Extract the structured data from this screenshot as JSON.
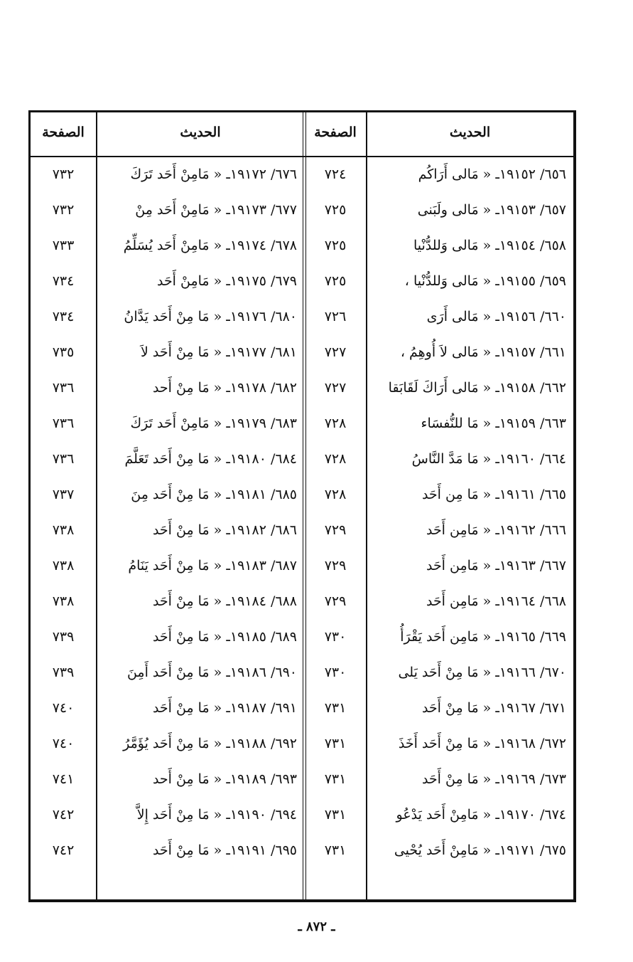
{
  "table": {
    "headers": [
      "الحديث",
      "الصفحة",
      "الحديث",
      "الصفحة"
    ],
    "rows": [
      [
        "٦٥٦/ ١٩١٥٢ـ « مَالى أَرَاكُم",
        "٧٢٤",
        "٦٧٦/ ١٩١٧٢ـ « مَامِنْ أَحَد تَرَكَ",
        "٧٣٢"
      ],
      [
        "٦٥٧/ ١٩١٥٣ـ « مَالى ولَبَنى",
        "٧٢٥",
        "٦٧٧/ ١٩١٧٣ـ « مَامِنْ أَحَد مِنْ",
        "٧٣٢"
      ],
      [
        "٦٥٨/ ١٩١٥٤ـ « مَالى وَللدُّنْيا",
        "٧٢٥",
        "٦٧٨/ ١٩١٧٤ـ « مَامِنْ أَحَد يُسَلِّمُ",
        "٧٣٣"
      ],
      [
        "٦٥٩/ ١٩١٥٥ـ « مَالى وَللدُّنْيا ،",
        "٧٢٥",
        "٦٧٩/ ١٩١٧٥ـ « مَامِنْ أَحَد",
        "٧٣٤"
      ],
      [
        "٦٦٠/ ١٩١٥٦ـ « مَالى أَرَى",
        "٧٢٦",
        "٦٨٠/ ١٩١٧٦ـ « مَا مِنْ أَحَد يَدَّانُ",
        "٧٣٤"
      ],
      [
        "٦٦١/ ١٩١٥٧ـ « مَالى لاَ أُوهِمُ ،",
        "٧٢٧",
        "٦٨١/ ١٩١٧٧ـ « مَا مِنْ أَحَد لاَ",
        "٧٣٥"
      ],
      [
        "٦٦٢/ ١٩١٥٨ـ « مَالى أَرَاكَ لَقَابَقا",
        "٧٢٧",
        "٦٨٢/ ١٩١٧٨ـ « مَا مِنْ أَحد",
        "٧٣٦"
      ],
      [
        "٦٦٣/ ١٩١٥٩ـ « مَا للنُّفسَاء",
        "٧٢٨",
        "٦٨٣/ ١٩١٧٩ـ « مَامِنْ أَحَد تَرَكَ",
        "٧٣٦"
      ],
      [
        "٦٦٤/ ١٩١٦٠ـ « مَا مَدَّ النَّاسُ",
        "٧٢٨",
        "٦٨٤/ ١٩١٨٠ـ « مَا مِنْ أَحَد تَعَلَّمَ",
        "٧٣٦"
      ],
      [
        "٦٦٥/ ١٩١٦١ـ « مَا مِن أَحَد",
        "٧٢٨",
        "٦٨٥/ ١٩١٨١ـ « مَا مِنْ أَحَد مِنَ",
        "٧٣٧"
      ],
      [
        "٦٦٦/ ١٩١٦٢ـ « مَامِن أَحَد",
        "٧٢٩",
        "٦٨٦/ ١٩١٨٢ـ « مَا مِنْ أَحَد",
        "٧٣٨"
      ],
      [
        "٦٦٧/ ١٩١٦٣ـ « مَامِن أَحَد",
        "٧٢٩",
        "٦٨٧/ ١٩١٨٣ـ « مَا مِنْ أَحَد يَنَامُ",
        "٧٣٨"
      ],
      [
        "٦٦٨/ ١٩١٦٤ـ « مَامِن أَحَد",
        "٧٢٩",
        "٦٨٨/ ١٩١٨٤ـ « مَا مِنْ أَحَد",
        "٧٣٨"
      ],
      [
        "٦٦٩/ ١٩١٦٥ـ « مَامِن أَحَد يَقْرَأُ",
        "٧٣٠",
        "٦٨٩/ ١٩١٨٥ـ « مَا مِنْ أَحَد",
        "٧٣٩"
      ],
      [
        "٦٧٠/ ١٩١٦٦ـ « مَا مِنْ أَحَد يَلى",
        "٧٣٠",
        "٦٩٠/ ١٩١٨٦ـ « مَا مِنْ أَحَد أَمِنَ",
        "٧٣٩"
      ],
      [
        "٦٧١/ ١٩١٦٧ـ « مَا مِنْ أَحَد",
        "٧٣١",
        "٦٩١/ ١٩١٨٧ـ « مَا مِنْ أَحَد",
        "٧٤٠"
      ],
      [
        "٦٧٢/ ١٩١٦٨ـ « مَا مِنْ أَحَد أَخَذَ",
        "٧٣١",
        "٦٩٢/ ١٩١٨٨ـ « مَا مِنْ أَحَد يُؤَمَّرُ",
        "٧٤٠"
      ],
      [
        "٦٧٣/ ١٩١٦٩ـ « مَا مِنْ أَحَد",
        "٧٣١",
        "٦٩٣/ ١٩١٨٩ـ « مَا مِنْ أَحد",
        "٧٤١"
      ],
      [
        "٦٧٤/ ١٩١٧٠ـ « مَامِنْ أَحَد يَدْعُو",
        "٧٣١",
        "٦٩٤/ ١٩١٩٠ـ « مَا مِنْ أَحَد إِلاَّ",
        "٧٤٢"
      ],
      [
        "٦٧٥/ ١٩١٧١ـ « مَامِنْ أَحَد يُحْيى",
        "٧٣١",
        "٦٩٥/ ١٩١٩١ـ « مَا مِنْ أَحَد",
        "٧٤٢"
      ]
    ]
  },
  "footer": "ـ ٨٧٢ ـ"
}
